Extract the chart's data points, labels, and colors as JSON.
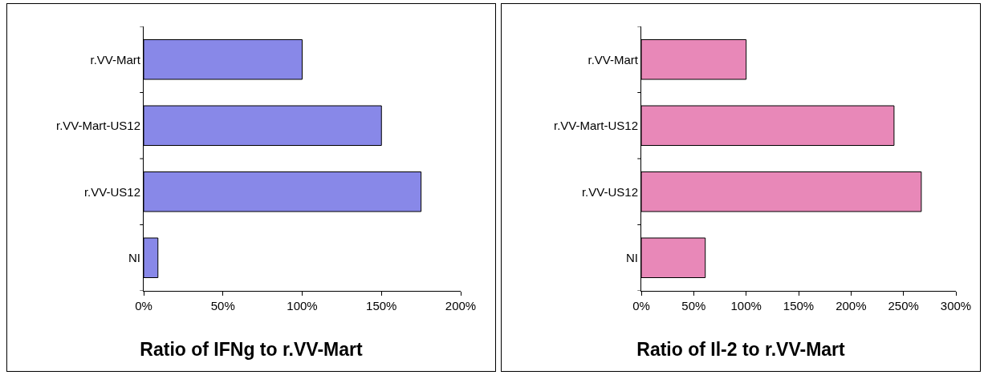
{
  "chart_data": [
    {
      "type": "bar",
      "orientation": "horizontal",
      "title": "Ratio of IFNg to r.VV-Mart",
      "categories": [
        "r.VV-Mart",
        "r.VV-Mart-US12",
        "r.VV-US12",
        "NI"
      ],
      "values": [
        100,
        150,
        175,
        9
      ],
      "color": "#8888e8",
      "xlim": [
        0,
        200
      ],
      "xticks": [
        {
          "value": 0,
          "label": "0%"
        },
        {
          "value": 50,
          "label": "50%"
        },
        {
          "value": 100,
          "label": "100%"
        },
        {
          "value": 150,
          "label": "150%"
        },
        {
          "value": 200,
          "label": "200%"
        }
      ],
      "grid": false,
      "legend": false
    },
    {
      "type": "bar",
      "orientation": "horizontal",
      "title": "Ratio of Il-2 to r.VV-Mart",
      "categories": [
        "r.VV-Mart",
        "r.VV-Mart-US12",
        "r.VV-US12",
        "NI"
      ],
      "values": [
        100,
        241,
        267,
        61
      ],
      "color": "#e888b8",
      "xlim": [
        0,
        300
      ],
      "xticks": [
        {
          "value": 0,
          "label": "0%"
        },
        {
          "value": 50,
          "label": "50%"
        },
        {
          "value": 100,
          "label": "100%"
        },
        {
          "value": 150,
          "label": "150%"
        },
        {
          "value": 200,
          "label": "200%"
        },
        {
          "value": 250,
          "label": "250%"
        },
        {
          "value": 300,
          "label": "300%"
        }
      ],
      "grid": false,
      "legend": false
    }
  ]
}
